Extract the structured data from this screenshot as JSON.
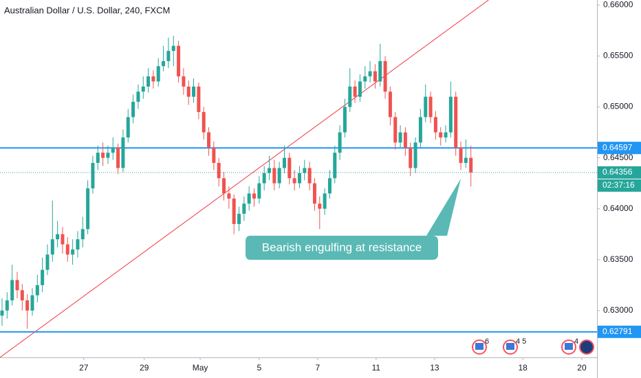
{
  "chart_data": {
    "type": "candlestick",
    "title": "Australian Dollar / U.S. Dollar, 240, FXCM",
    "annotation": "Bearish engulfing at resistance",
    "ylim": [
      0.6254,
      0.6605
    ],
    "yticks": [
      {
        "value": 0.66,
        "label": "0.66000"
      },
      {
        "value": 0.655,
        "label": "0.65500"
      },
      {
        "value": 0.65,
        "label": "0.65000"
      },
      {
        "value": 0.645,
        "label": "0.64500"
      },
      {
        "value": 0.64,
        "label": "0.64000"
      },
      {
        "value": 0.635,
        "label": "0.63500"
      },
      {
        "value": 0.63,
        "label": "0.63000"
      }
    ],
    "xticks": [
      {
        "value": 16.2,
        "label": "27"
      },
      {
        "value": 28.2,
        "label": "29"
      },
      {
        "value": 39.3,
        "label": "May"
      },
      {
        "value": 51,
        "label": "5"
      },
      {
        "value": 62.6,
        "label": "7"
      },
      {
        "value": 74.2,
        "label": "11"
      },
      {
        "value": 85.8,
        "label": "13"
      },
      {
        "value": 103.3,
        "label": "18"
      },
      {
        "value": 115,
        "label": "20"
      }
    ],
    "up_color": "#26a69a",
    "down_color": "#ef5350",
    "levels": [
      {
        "value": 0.64597,
        "color": "#2196f3"
      },
      {
        "value": 0.62791,
        "color": "#2196f3"
      }
    ],
    "last_price": 0.64356,
    "countdown": "02:37:16",
    "trendline": {
      "x": [
        -0.4,
        96.5
      ],
      "y": [
        0.6254,
        0.6605
      ],
      "color": "#f23645"
    },
    "events": [
      "6",
      "4 5",
      "4"
    ],
    "candles": [
      [
        0.6295,
        0.6312,
        0.6285,
        0.63
      ],
      [
        0.63,
        0.6318,
        0.6292,
        0.631
      ],
      [
        0.631,
        0.6345,
        0.6305,
        0.633
      ],
      [
        0.633,
        0.6338,
        0.6312,
        0.632
      ],
      [
        0.632,
        0.6326,
        0.63,
        0.631
      ],
      [
        0.631,
        0.6316,
        0.6282,
        0.63
      ],
      [
        0.63,
        0.6322,
        0.6295,
        0.6315
      ],
      [
        0.6315,
        0.6335,
        0.6308,
        0.6325
      ],
      [
        0.6325,
        0.6352,
        0.6318,
        0.634
      ],
      [
        0.634,
        0.6365,
        0.6335,
        0.6355
      ],
      [
        0.6355,
        0.6408,
        0.6348,
        0.637
      ],
      [
        0.637,
        0.6388,
        0.6362,
        0.6375
      ],
      [
        0.6375,
        0.6382,
        0.6356,
        0.6365
      ],
      [
        0.6365,
        0.6372,
        0.6348,
        0.6355
      ],
      [
        0.6355,
        0.637,
        0.6345,
        0.636
      ],
      [
        0.636,
        0.6378,
        0.6352,
        0.637
      ],
      [
        0.637,
        0.6392,
        0.6362,
        0.638
      ],
      [
        0.638,
        0.6428,
        0.6375,
        0.642
      ],
      [
        0.642,
        0.6452,
        0.6415,
        0.6445
      ],
      [
        0.6445,
        0.6462,
        0.6438,
        0.6455
      ],
      [
        0.6455,
        0.6465,
        0.6442,
        0.645
      ],
      [
        0.645,
        0.6462,
        0.6444,
        0.6455
      ],
      [
        0.6455,
        0.647,
        0.6448,
        0.646
      ],
      [
        0.646,
        0.6464,
        0.6434,
        0.644
      ],
      [
        0.644,
        0.6478,
        0.6436,
        0.647
      ],
      [
        0.647,
        0.6498,
        0.6465,
        0.649
      ],
      [
        0.649,
        0.6512,
        0.6484,
        0.6505
      ],
      [
        0.6505,
        0.6522,
        0.6498,
        0.6515
      ],
      [
        0.6515,
        0.653,
        0.6508,
        0.652
      ],
      [
        0.652,
        0.6538,
        0.6514,
        0.653
      ],
      [
        0.653,
        0.6536,
        0.6518,
        0.6525
      ],
      [
        0.6525,
        0.6548,
        0.652,
        0.654
      ],
      [
        0.654,
        0.656,
        0.6535,
        0.6545
      ],
      [
        0.6545,
        0.6568,
        0.6538,
        0.6555
      ],
      [
        0.6555,
        0.657,
        0.654,
        0.656
      ],
      [
        0.656,
        0.6565,
        0.6524,
        0.653
      ],
      [
        0.653,
        0.6538,
        0.6512,
        0.652
      ],
      [
        0.652,
        0.6526,
        0.6502,
        0.651
      ],
      [
        0.651,
        0.6528,
        0.6504,
        0.652
      ],
      [
        0.652,
        0.6524,
        0.6488,
        0.6495
      ],
      [
        0.6495,
        0.65,
        0.6468,
        0.6475
      ],
      [
        0.6475,
        0.648,
        0.6452,
        0.646
      ],
      [
        0.646,
        0.6466,
        0.6438,
        0.6445
      ],
      [
        0.6445,
        0.645,
        0.6422,
        0.643
      ],
      [
        0.643,
        0.6436,
        0.6408,
        0.6415
      ],
      [
        0.6415,
        0.6422,
        0.64,
        0.641
      ],
      [
        0.641,
        0.6414,
        0.6375,
        0.6385
      ],
      [
        0.6385,
        0.6402,
        0.6378,
        0.6395
      ],
      [
        0.6395,
        0.6412,
        0.6388,
        0.6405
      ],
      [
        0.6405,
        0.6422,
        0.6398,
        0.6415
      ],
      [
        0.6415,
        0.642,
        0.6402,
        0.641
      ],
      [
        0.641,
        0.6432,
        0.6405,
        0.6425
      ],
      [
        0.6425,
        0.6442,
        0.6418,
        0.6435
      ],
      [
        0.6435,
        0.6452,
        0.6428,
        0.644
      ],
      [
        0.644,
        0.6448,
        0.6418,
        0.6425
      ],
      [
        0.6425,
        0.6446,
        0.642,
        0.644
      ],
      [
        0.644,
        0.6462,
        0.6435,
        0.645
      ],
      [
        0.645,
        0.6455,
        0.6424,
        0.643
      ],
      [
        0.643,
        0.6438,
        0.6418,
        0.6425
      ],
      [
        0.6425,
        0.6442,
        0.642,
        0.6435
      ],
      [
        0.6435,
        0.6448,
        0.6428,
        0.644
      ],
      [
        0.644,
        0.6446,
        0.6418,
        0.6425
      ],
      [
        0.6425,
        0.643,
        0.6398,
        0.6405
      ],
      [
        0.6405,
        0.6412,
        0.638,
        0.64
      ],
      [
        0.64,
        0.642,
        0.6394,
        0.6415
      ],
      [
        0.6415,
        0.6438,
        0.641,
        0.643
      ],
      [
        0.643,
        0.6462,
        0.6425,
        0.6455
      ],
      [
        0.6455,
        0.6482,
        0.6448,
        0.6475
      ],
      [
        0.6475,
        0.6508,
        0.647,
        0.65
      ],
      [
        0.65,
        0.6538,
        0.6495,
        0.652
      ],
      [
        0.652,
        0.6526,
        0.6504,
        0.651
      ],
      [
        0.651,
        0.6532,
        0.6505,
        0.6525
      ],
      [
        0.6525,
        0.654,
        0.6518,
        0.653
      ],
      [
        0.653,
        0.6545,
        0.6524,
        0.6535
      ],
      [
        0.6535,
        0.6542,
        0.6518,
        0.6525
      ],
      [
        0.6525,
        0.6562,
        0.652,
        0.6545
      ],
      [
        0.6545,
        0.655,
        0.6508,
        0.6515
      ],
      [
        0.6515,
        0.652,
        0.6482,
        0.649
      ],
      [
        0.649,
        0.6495,
        0.6458,
        0.6465
      ],
      [
        0.6465,
        0.6482,
        0.646,
        0.6475
      ],
      [
        0.6475,
        0.648,
        0.6452,
        0.646
      ],
      [
        0.646,
        0.6465,
        0.6432,
        0.644
      ],
      [
        0.644,
        0.647,
        0.6435,
        0.6465
      ],
      [
        0.6465,
        0.6498,
        0.646,
        0.649
      ],
      [
        0.649,
        0.6522,
        0.6485,
        0.651
      ],
      [
        0.651,
        0.6515,
        0.6484,
        0.649
      ],
      [
        0.649,
        0.6496,
        0.6468,
        0.6475
      ],
      [
        0.6475,
        0.648,
        0.6462,
        0.647
      ],
      [
        0.647,
        0.6482,
        0.6465,
        0.6475
      ],
      [
        0.6475,
        0.6525,
        0.647,
        0.651
      ],
      [
        0.651,
        0.6515,
        0.6452,
        0.646
      ],
      [
        0.646,
        0.6466,
        0.6438,
        0.6445
      ],
      [
        0.6445,
        0.6468,
        0.644,
        0.645
      ],
      [
        0.645,
        0.6462,
        0.6422,
        0.64356
      ]
    ]
  }
}
